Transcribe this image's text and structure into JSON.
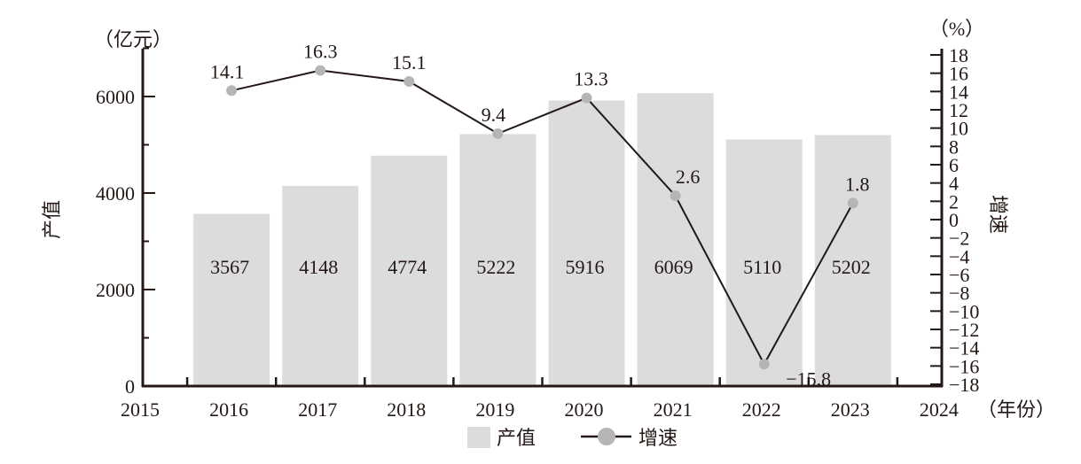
{
  "chart_data": {
    "type": "bar+line",
    "categories": [
      "2016",
      "2017",
      "2018",
      "2019",
      "2020",
      "2021",
      "2022",
      "2023"
    ],
    "x_ticks": [
      "2015",
      "2016",
      "2017",
      "2018",
      "2019",
      "2020",
      "2021",
      "2022",
      "2023",
      "2024"
    ],
    "x_unit": "（年份）",
    "series": [
      {
        "name": "产值",
        "type": "bar",
        "axis": "left",
        "values": [
          3567,
          4148,
          4774,
          5222,
          5916,
          6069,
          5110,
          5202
        ],
        "color": "#dcdcdc"
      },
      {
        "name": "增速",
        "type": "line",
        "axis": "right",
        "values": [
          14.1,
          16.3,
          15.1,
          9.4,
          13.3,
          2.6,
          -15.8,
          1.8
        ],
        "color": "#231815",
        "marker_color": "#b5b5b5"
      }
    ],
    "left_axis": {
      "label": "产值",
      "unit": "（亿元）",
      "ylim": [
        0,
        7000
      ],
      "ticks": [
        0,
        2000,
        4000,
        6000
      ],
      "minor_step": 1000
    },
    "right_axis": {
      "label": "增速",
      "unit": "（%）",
      "ylim": [
        -18,
        18
      ],
      "ticks": [
        18,
        16,
        14,
        12,
        10,
        8,
        6,
        4,
        2,
        0,
        -2,
        -4,
        -6,
        -8,
        -10,
        -12,
        -14,
        -16,
        -18
      ]
    },
    "legend": {
      "placement": "bottom",
      "items": [
        "产值",
        "增速"
      ]
    },
    "grid": false
  }
}
